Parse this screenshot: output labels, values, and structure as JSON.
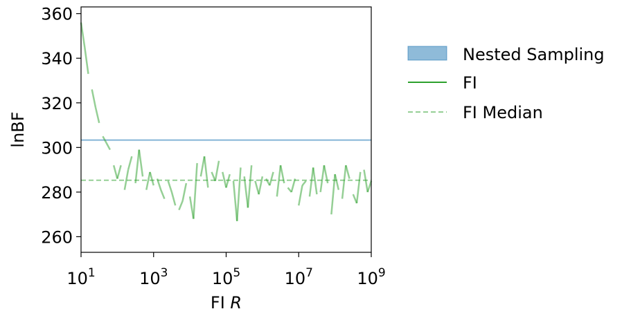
{
  "chart_data": {
    "type": "line",
    "xlabel": "FI",
    "xlabel_italic": "R",
    "ylabel": "lnBF",
    "xscale": "log",
    "xlim_log10": [
      1,
      9
    ],
    "ylim": [
      253,
      363
    ],
    "xticks": [
      {
        "exp": 1,
        "base": "10",
        "sup": "1"
      },
      {
        "exp": 3,
        "base": "10",
        "sup": "3"
      },
      {
        "exp": 5,
        "base": "10",
        "sup": "5"
      },
      {
        "exp": 7,
        "base": "10",
        "sup": "7"
      },
      {
        "exp": 9,
        "base": "10",
        "sup": "9"
      }
    ],
    "yticks": [
      260,
      280,
      300,
      320,
      340,
      360
    ],
    "grid": false,
    "legend_position": "outside-right",
    "colors": {
      "nested_sampling": "#1f77b4",
      "fi": "#2ca02c"
    },
    "nested_sampling": {
      "name": "Nested Sampling",
      "y": 303.3
    },
    "fi_median": {
      "name": "FI Median",
      "y": 285.3
    },
    "fi_label": "FI",
    "fi_series": {
      "name": "FI",
      "note_x_is_log10_R": true,
      "x": [
        1.0,
        1.1,
        1.2,
        1.3,
        1.4,
        1.5,
        1.6,
        1.7,
        1.8,
        1.9,
        2.0,
        2.1,
        2.2,
        2.3,
        2.4,
        2.5,
        2.6,
        2.7,
        2.8,
        2.9,
        3.0,
        3.1,
        3.2,
        3.3,
        3.4,
        3.5,
        3.6,
        3.7,
        3.8,
        3.9,
        4.0,
        4.1,
        4.2,
        4.3,
        4.4,
        4.5,
        4.6,
        4.7,
        4.8,
        4.9,
        5.0,
        5.1,
        5.2,
        5.3,
        5.4,
        5.5,
        5.6,
        5.7,
        5.8,
        5.9,
        6.0,
        6.1,
        6.2,
        6.3,
        6.4,
        6.5,
        6.6,
        6.7,
        6.8,
        6.9,
        7.0,
        7.1,
        7.2,
        7.3,
        7.4,
        7.5,
        7.6,
        7.7,
        7.8,
        7.9,
        8.0,
        8.1,
        8.2,
        8.3,
        8.4,
        8.5,
        8.6,
        8.7,
        8.8,
        8.9,
        9.0
      ],
      "y": [
        356,
        345,
        333,
        326,
        318,
        311,
        305,
        302,
        299,
        292,
        286,
        292,
        281,
        290,
        296,
        284,
        299,
        287,
        281,
        289,
        283,
        286,
        281,
        277,
        285,
        280,
        274,
        272,
        276,
        284,
        278,
        268,
        293,
        287,
        296,
        282,
        289,
        285,
        294,
        289,
        282,
        288,
        285,
        267,
        291,
        287,
        273,
        292,
        285,
        279,
        287,
        286,
        283,
        289,
        278,
        292,
        284,
        282,
        280,
        286,
        274,
        283,
        285,
        278,
        291,
        279,
        280,
        292,
        284,
        270,
        288,
        281,
        277,
        292,
        286,
        279,
        275,
        289,
        290,
        280,
        285
      ]
    }
  }
}
